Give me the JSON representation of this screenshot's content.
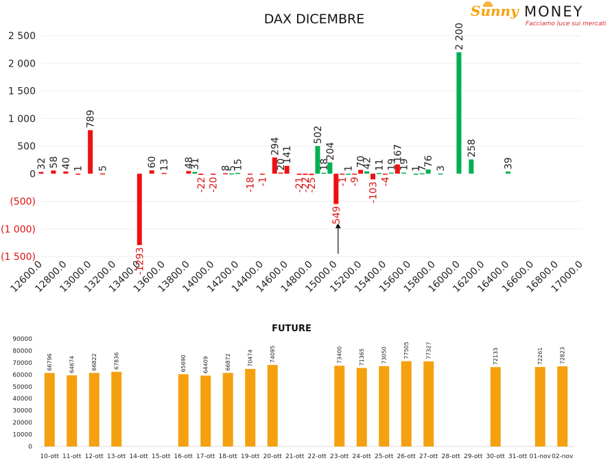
{
  "logo": {
    "brand_part1": "Sunny",
    "brand_part2": "MONEY",
    "tagline": "Facciamo luce sui mercati",
    "colors": {
      "sunny": "#f7a10c",
      "money": "#1a1a1a",
      "tagline": "#d8242a"
    }
  },
  "chart_data": [
    {
      "type": "bar",
      "title": "DAX DICEMBRE",
      "xlabel": "",
      "ylabel": "",
      "ylim": [
        -1500,
        2500
      ],
      "y_ticks": [
        2500,
        2000,
        1500,
        1000,
        500,
        0,
        -500,
        -1000,
        -1500
      ],
      "y_tick_labels": [
        "2 500",
        "2 000",
        "1 500",
        "1 000",
        "500",
        "0",
        "(500)",
        "(1 000)",
        "(1 500)"
      ],
      "x_tick_labels": [
        "12600.0",
        "12800.0",
        "13000.0",
        "13200.0",
        "13400.0",
        "13600.0",
        "13800.0",
        "14000.0",
        "14200.0",
        "14400.0",
        "14600.0",
        "14800.0",
        "15000.0",
        "15200.0",
        "15400.0",
        "15600.0",
        "15800.0",
        "16000.0",
        "16200.0",
        "16400.0",
        "16600.0",
        "16800.0",
        "17000.0"
      ],
      "x_range": [
        12600,
        17000
      ],
      "grid": true,
      "legend": "none",
      "colors": {
        "negative_change": "#ee1111",
        "positive_change": "#00b050",
        "negative_label": "#dd1111",
        "positive_label": "#222222"
      },
      "series": [
        {
          "values": [
            {
              "strike": 12600,
              "value": 32,
              "color": "red"
            },
            {
              "strike": 12700,
              "value": 58,
              "color": "red"
            },
            {
              "strike": 12800,
              "value": 40,
              "color": "red"
            },
            {
              "strike": 12900,
              "value": 1,
              "color": "red"
            },
            {
              "strike": 13000,
              "value": 789,
              "color": "red"
            },
            {
              "strike": 13100,
              "value": 5,
              "color": "red"
            },
            {
              "strike": 13400,
              "value": -1293,
              "color": "red"
            },
            {
              "strike": 13500,
              "value": 60,
              "color": "red"
            },
            {
              "strike": 13600,
              "value": 13,
              "color": "red"
            },
            {
              "strike": 13800,
              "value": 48,
              "color": "red"
            },
            {
              "strike": 13850,
              "value": 31,
              "color": "green"
            },
            {
              "strike": 13900,
              "value": -22,
              "color": "red"
            },
            {
              "strike": 14000,
              "value": -20,
              "color": "red"
            },
            {
              "strike": 14100,
              "value": 8,
              "color": "red"
            },
            {
              "strike": 14150,
              "value": 5,
              "color": "green"
            },
            {
              "strike": 14200,
              "value": 15,
              "color": "green"
            },
            {
              "strike": 14300,
              "value": -18,
              "color": "red"
            },
            {
              "strike": 14400,
              "value": -1,
              "color": "red"
            },
            {
              "strike": 14500,
              "value": 294,
              "color": "red"
            },
            {
              "strike": 14550,
              "value": 20,
              "color": "red"
            },
            {
              "strike": 14600,
              "value": 141,
              "color": "red"
            },
            {
              "strike": 14700,
              "value": -21,
              "color": "red"
            },
            {
              "strike": 14750,
              "value": -22,
              "color": "red"
            },
            {
              "strike": 14800,
              "value": -25,
              "color": "red"
            },
            {
              "strike": 14850,
              "value": 502,
              "color": "green"
            },
            {
              "strike": 14900,
              "value": 18,
              "color": "green"
            },
            {
              "strike": 14950,
              "value": 204,
              "color": "green"
            },
            {
              "strike": 15000,
              "value": -549,
              "color": "red"
            },
            {
              "strike": 15050,
              "value": -1,
              "color": "red"
            },
            {
              "strike": 15100,
              "value": 1,
              "color": "green"
            },
            {
              "strike": 15150,
              "value": -9,
              "color": "red"
            },
            {
              "strike": 15200,
              "value": 70,
              "color": "red"
            },
            {
              "strike": 15250,
              "value": 42,
              "color": "green"
            },
            {
              "strike": 15300,
              "value": -103,
              "color": "red"
            },
            {
              "strike": 15350,
              "value": 11,
              "color": "green"
            },
            {
              "strike": 15400,
              "value": -4,
              "color": "red"
            },
            {
              "strike": 15450,
              "value": 19,
              "color": "green"
            },
            {
              "strike": 15500,
              "value": 167,
              "color": "red"
            },
            {
              "strike": 15550,
              "value": 19,
              "color": "green"
            },
            {
              "strike": 15650,
              "value": 1,
              "color": "green"
            },
            {
              "strike": 15700,
              "value": 7,
              "color": "green"
            },
            {
              "strike": 15750,
              "value": 76,
              "color": "green"
            },
            {
              "strike": 15850,
              "value": 3,
              "color": "green"
            },
            {
              "strike": 16000,
              "value": 2200,
              "color": "green"
            },
            {
              "strike": 16100,
              "value": 258,
              "color": "green"
            },
            {
              "strike": 16400,
              "value": 39,
              "color": "green"
            }
          ]
        }
      ],
      "annotations": [
        {
          "type": "arrow",
          "at_strike": 15000,
          "from_value": -1450,
          "to_value": -900
        }
      ]
    },
    {
      "type": "bar",
      "title": "FUTURE",
      "xlabel": "",
      "ylabel": "",
      "ylim": [
        0,
        90000
      ],
      "y_ticks": [
        0,
        10000,
        20000,
        30000,
        40000,
        50000,
        60000,
        70000,
        80000,
        90000
      ],
      "y_tick_labels": [
        "0",
        "10000",
        "20000",
        "30000",
        "40000",
        "50000",
        "60000",
        "70000",
        "80000",
        "90000"
      ],
      "grid": false,
      "legend": "none",
      "bar_color": "#f5a00f",
      "categories": [
        "10-ott",
        "11-ott",
        "12-ott",
        "13-ott",
        "14-ott",
        "15-ott",
        "16-ott",
        "17-ott",
        "18-ott",
        "19-ott",
        "20-ott",
        "21-ott",
        "22-ott",
        "23-ott",
        "24-ott",
        "25-ott",
        "26-ott",
        "27-ott",
        "28-ott",
        "29-ott",
        "30-ott",
        "31-ott",
        "01-nov",
        "02-nov"
      ],
      "values": [
        66796,
        64674,
        66822,
        67836,
        null,
        null,
        65690,
        64409,
        66872,
        70474,
        74095,
        null,
        null,
        73400,
        71365,
        73050,
        77505,
        77327,
        null,
        null,
        72133,
        null,
        72261,
        72823
      ],
      "bar_value_scale": 0.92
    }
  ]
}
